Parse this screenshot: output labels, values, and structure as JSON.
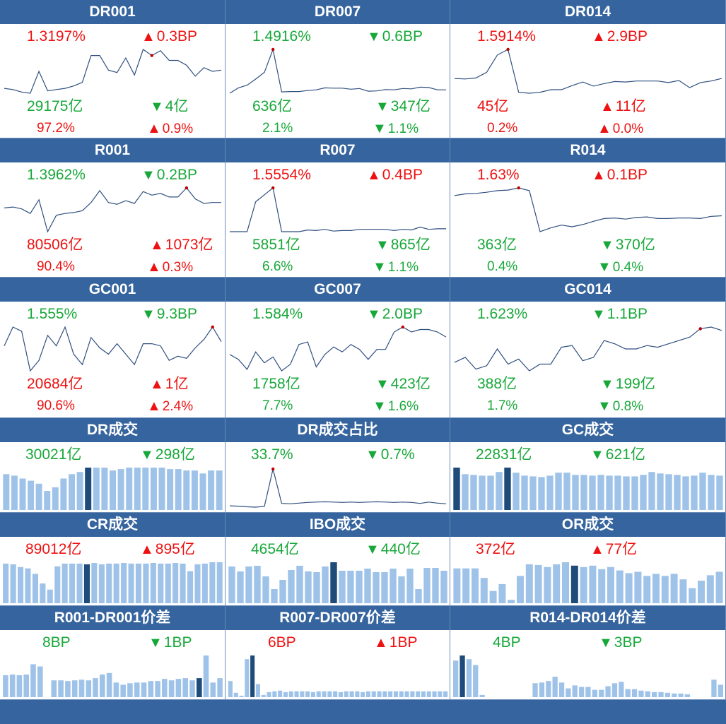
{
  "colors": {
    "header_bg": "#35649e",
    "up": "#ee1111",
    "down": "#18a83a",
    "line": "#2f4f7f",
    "bar": "#9fc3e8",
    "bar_hl": "#1f4b7a",
    "dot": "#c00000"
  },
  "rate_panels": [
    {
      "title": "DR001",
      "rate": "1.3197%",
      "rate_color": "red",
      "rate_chg_arrow": "▲",
      "rate_chg": "0.3BP",
      "rate_chg_color": "red",
      "volume": "29175亿",
      "volume_color": "green",
      "vol_chg_arrow": "▼",
      "vol_chg": "4亿",
      "vol_chg_color": "green",
      "share": "97.2%",
      "share_color": "red",
      "share_chg_arrow": "▲",
      "share_chg": "0.9%",
      "share_chg_color": "red",
      "series": [
        1.15,
        1.14,
        1.12,
        1.11,
        1.29,
        1.13,
        1.14,
        1.15,
        1.17,
        1.2,
        1.42,
        1.42,
        1.3,
        1.28,
        1.4,
        1.26,
        1.47,
        1.42,
        1.46,
        1.38,
        1.38,
        1.34,
        1.25,
        1.32,
        1.29,
        1.3
      ],
      "peak": 17
    },
    {
      "title": "DR007",
      "rate": "1.4916%",
      "rate_color": "green",
      "rate_chg_arrow": "▼",
      "rate_chg": "0.6BP",
      "rate_chg_color": "green",
      "volume": "636亿",
      "volume_color": "green",
      "vol_chg_arrow": "▼",
      "vol_chg": "347亿",
      "vol_chg_color": "green",
      "share": "2.1%",
      "share_color": "green",
      "share_chg_arrow": "▼",
      "share_chg": "1.1%",
      "share_chg_color": "green",
      "series": [
        1.56,
        1.72,
        1.8,
        1.98,
        2.18,
        2.86,
        1.6,
        1.61,
        1.61,
        1.64,
        1.66,
        1.72,
        1.71,
        1.71,
        1.68,
        1.7,
        1.62,
        1.63,
        1.67,
        1.66,
        1.7,
        1.69,
        1.74,
        1.73,
        1.66,
        1.66
      ],
      "peak": 5
    },
    {
      "title": "DR014",
      "rate": "1.5914%",
      "rate_color": "red",
      "rate_chg_arrow": "▲",
      "rate_chg": "2.9BP",
      "rate_chg_color": "red",
      "volume": "45亿",
      "volume_color": "red",
      "vol_chg_arrow": "▲",
      "vol_chg": "11亿",
      "vol_chg_color": "red",
      "share": "0.2%",
      "share_color": "red",
      "share_chg_arrow": "▲",
      "share_chg": "0.0%",
      "share_chg_color": "red",
      "series": [
        1.7,
        1.69,
        1.71,
        1.82,
        2.16,
        2.27,
        1.43,
        1.41,
        1.43,
        1.48,
        1.48,
        1.56,
        1.63,
        1.55,
        1.6,
        1.64,
        1.63,
        1.65,
        1.65,
        1.65,
        1.62,
        1.66,
        1.52,
        1.62,
        1.65,
        1.7
      ],
      "peak": 5
    },
    {
      "title": "R001",
      "rate": "1.3962%",
      "rate_color": "green",
      "rate_chg_arrow": "▼",
      "rate_chg": "0.2BP",
      "rate_chg_color": "green",
      "volume": "80506亿",
      "volume_color": "red",
      "vol_chg_arrow": "▲",
      "vol_chg": "1073亿",
      "vol_chg_color": "red",
      "share": "90.4%",
      "share_color": "red",
      "share_chg_arrow": "▲",
      "share_chg": "0.3%",
      "share_chg_color": "red",
      "series": [
        1.26,
        1.27,
        1.25,
        1.2,
        1.35,
        1.0,
        1.18,
        1.2,
        1.21,
        1.23,
        1.32,
        1.45,
        1.32,
        1.3,
        1.34,
        1.31,
        1.44,
        1.4,
        1.42,
        1.38,
        1.38,
        1.48,
        1.36,
        1.31,
        1.32,
        1.32
      ],
      "peak": 21
    },
    {
      "title": "R007",
      "rate": "1.5554%",
      "rate_color": "red",
      "rate_chg_arrow": "▲",
      "rate_chg": "0.4BP",
      "rate_chg_color": "red",
      "volume": "5851亿",
      "volume_color": "green",
      "vol_chg_arrow": "▼",
      "vol_chg": "865亿",
      "vol_chg_color": "green",
      "share": "6.6%",
      "share_color": "green",
      "share_chg_arrow": "▼",
      "share_chg": "1.1%",
      "share_chg_color": "green",
      "series": [
        1.66,
        1.66,
        1.66,
        2.18,
        2.3,
        2.42,
        1.66,
        1.66,
        1.66,
        1.69,
        1.68,
        1.7,
        1.67,
        1.68,
        1.68,
        1.7,
        1.7,
        1.7,
        1.7,
        1.68,
        1.7,
        1.69,
        1.74,
        1.7,
        1.71,
        1.71
      ],
      "peak": 5
    },
    {
      "title": "R014",
      "rate": "1.63%",
      "rate_color": "red",
      "rate_chg_arrow": "▲",
      "rate_chg": "0.1BP",
      "rate_chg_color": "red",
      "volume": "363亿",
      "volume_color": "green",
      "vol_chg_arrow": "▼",
      "vol_chg": "370亿",
      "vol_chg_color": "green",
      "share": "0.4%",
      "share_color": "green",
      "share_chg_arrow": "▼",
      "share_chg": "0.4%",
      "share_chg_color": "green",
      "series": [
        1.92,
        1.95,
        1.96,
        1.98,
        2.01,
        2.02,
        2.06,
        2.01,
        1.26,
        1.33,
        1.38,
        1.35,
        1.39,
        1.45,
        1.5,
        1.51,
        1.49,
        1.52,
        1.53,
        1.5,
        1.5,
        1.51,
        1.51,
        1.5,
        1.54,
        1.55
      ],
      "peak": 6
    },
    {
      "title": "GC001",
      "rate": "1.555%",
      "rate_color": "green",
      "rate_chg_arrow": "▼",
      "rate_chg": "9.3BP",
      "rate_chg_color": "green",
      "volume": "20684亿",
      "volume_color": "red",
      "vol_chg_arrow": "▲",
      "vol_chg": "1亿",
      "vol_chg_color": "red",
      "share": "90.6%",
      "share_color": "red",
      "share_chg_arrow": "▲",
      "share_chg": "2.4%",
      "share_chg_color": "red",
      "series": [
        1.4,
        1.85,
        1.75,
        0.8,
        1.05,
        1.65,
        1.4,
        1.85,
        1.2,
        0.95,
        1.6,
        1.35,
        1.2,
        1.45,
        1.2,
        0.95,
        1.45,
        1.45,
        1.4,
        1.05,
        1.15,
        1.1,
        1.35,
        1.55,
        1.85,
        1.5
      ],
      "peak": 24
    },
    {
      "title": "GC007",
      "rate": "1.584%",
      "rate_color": "green",
      "rate_chg_arrow": "▼",
      "rate_chg": "2.0BP",
      "rate_chg_color": "green",
      "volume": "1758亿",
      "volume_color": "green",
      "vol_chg_arrow": "▼",
      "vol_chg": "423亿",
      "vol_chg_color": "green",
      "share": "7.7%",
      "share_color": "green",
      "share_chg_arrow": "▼",
      "share_chg": "1.6%",
      "share_chg_color": "green",
      "series": [
        1.45,
        1.35,
        1.15,
        1.5,
        1.28,
        1.4,
        1.12,
        1.25,
        1.65,
        1.7,
        1.2,
        1.45,
        1.6,
        1.5,
        1.65,
        1.55,
        1.35,
        1.55,
        1.55,
        1.9,
        2.0,
        1.9,
        1.95,
        1.95,
        1.9,
        1.8
      ],
      "peak": 20
    },
    {
      "title": "GC014",
      "rate": "1.623%",
      "rate_color": "green",
      "rate_chg_arrow": "▼",
      "rate_chg": "1.1BP",
      "rate_chg_color": "green",
      "volume": "388亿",
      "volume_color": "green",
      "vol_chg_arrow": "▼",
      "vol_chg": "199亿",
      "vol_chg_color": "green",
      "share": "1.7%",
      "share_color": "green",
      "share_chg_arrow": "▼",
      "share_chg": "0.8%",
      "share_chg_color": "green",
      "series": [
        1.3,
        1.45,
        1.1,
        1.2,
        1.7,
        1.25,
        1.4,
        1.05,
        1.25,
        1.25,
        1.75,
        1.8,
        1.35,
        1.45,
        1.95,
        1.85,
        1.7,
        1.7,
        1.8,
        1.75,
        1.85,
        1.95,
        2.05,
        2.3,
        2.35,
        2.25
      ],
      "peak": 23
    }
  ],
  "volume_panels": [
    {
      "title": "DR成交",
      "kind": "bar",
      "value": "30021亿",
      "value_color": "green",
      "chg_arrow": "▼",
      "chg": "298亿",
      "chg_color": "green",
      "bars": [
        49,
        47,
        43,
        40,
        36,
        26,
        31,
        43,
        49,
        52,
        58,
        58,
        58,
        54,
        56,
        58,
        58,
        58,
        58,
        58,
        56,
        56,
        54,
        54,
        50,
        54,
        54
      ],
      "hl": [
        10
      ]
    },
    {
      "title": "DR成交占比",
      "kind": "line",
      "value": "33.7%",
      "value_color": "green",
      "chg_arrow": "▼",
      "chg": "0.7%",
      "chg_color": "green",
      "series": [
        1.5,
        1.4,
        1.2,
        1.1,
        1.3,
        12.4,
        2.2,
        2.1,
        2.3,
        2.5,
        2.6,
        2.7,
        2.6,
        2.5,
        2.6,
        2.5,
        2.6,
        2.7,
        2.6,
        2.5,
        2.6,
        2.5,
        2.2,
        2.6,
        2.3,
        2.1
      ],
      "peak": 5
    },
    {
      "title": "GC成交",
      "kind": "bar",
      "value": "22831亿",
      "value_color": "green",
      "chg_arrow": "▼",
      "chg": "621亿",
      "chg_color": "green",
      "bars": [
        58,
        49,
        48,
        47,
        47,
        52,
        58,
        51,
        47,
        46,
        45,
        47,
        51,
        51,
        48,
        48,
        47,
        48,
        47,
        47,
        46,
        46,
        48,
        52,
        50,
        49,
        48,
        46,
        47,
        51,
        48,
        47
      ],
      "hl": [
        0,
        6
      ]
    },
    {
      "title": "CR成交",
      "kind": "bar",
      "value": "89012亿",
      "value_color": "red",
      "chg_arrow": "▲",
      "chg": "895亿",
      "chg_color": "red",
      "bars": [
        58,
        57,
        53,
        51,
        43,
        29,
        20,
        54,
        58,
        58,
        58,
        57,
        59,
        57,
        58,
        58,
        59,
        58,
        58,
        58,
        59,
        58,
        58,
        59,
        58,
        47,
        57,
        58,
        60,
        60
      ],
      "hl": [
        11
      ]
    },
    {
      "title": "IBO成交",
      "kind": "bar",
      "value": "4654亿",
      "value_color": "green",
      "chg_arrow": "▼",
      "chg": "440亿",
      "chg_color": "green",
      "bars": [
        52,
        45,
        52,
        53,
        38,
        20,
        33,
        47,
        53,
        45,
        44,
        52,
        58,
        46,
        46,
        46,
        49,
        44,
        44,
        49,
        38,
        49,
        20,
        50,
        50,
        46
      ],
      "hl": [
        12
      ]
    },
    {
      "title": "OR成交",
      "kind": "bar",
      "value": "372亿",
      "value_color": "red",
      "chg_arrow": "▲",
      "chg": "77亿",
      "chg_color": "red",
      "bars": [
        51,
        51,
        51,
        37,
        18,
        28,
        5,
        40,
        57,
        56,
        53,
        57,
        60,
        55,
        53,
        55,
        50,
        53,
        48,
        44,
        46,
        40,
        43,
        40,
        43,
        35,
        22,
        33,
        41,
        46
      ],
      "hl": [
        13
      ]
    }
  ],
  "spread_panels": [
    {
      "title": "R001-DR001价差",
      "value": "8BP",
      "value_color": "green",
      "chg_arrow": "▼",
      "chg": "1BP",
      "chg_color": "green",
      "bars": [
        30,
        31,
        30,
        31,
        45,
        42,
        0,
        23,
        23,
        22,
        23,
        24,
        23,
        26,
        31,
        33,
        20,
        17,
        19,
        20,
        20,
        22,
        22,
        25,
        23,
        25,
        26,
        23,
        26,
        57,
        20,
        26
      ],
      "hl": [
        28
      ]
    },
    {
      "title": "R007-DR007价差",
      "value": "6BP",
      "value_color": "red",
      "chg_arrow": "▲",
      "chg": "1BP",
      "chg_color": "red",
      "bars": [
        22,
        6,
        2,
        52,
        57,
        18,
        3,
        7,
        8,
        9,
        7,
        8,
        8,
        8,
        8,
        7,
        8,
        8,
        8,
        8,
        7,
        8,
        8,
        8,
        7,
        8,
        8,
        8,
        8,
        8,
        8,
        8,
        8,
        8,
        8,
        8,
        8,
        8,
        8,
        8
      ],
      "hl": [
        4
      ]
    },
    {
      "title": "R014-DR014价差",
      "value": "4BP",
      "value_color": "green",
      "chg_arrow": "▼",
      "chg": "3BP",
      "chg_color": "green",
      "bars": [
        50,
        57,
        52,
        44,
        3,
        0,
        0,
        0,
        0,
        0,
        0,
        0,
        19,
        20,
        22,
        28,
        20,
        12,
        16,
        14,
        14,
        10,
        10,
        15,
        19,
        21,
        11,
        11,
        9,
        8,
        7,
        7,
        6,
        5,
        5,
        4,
        0,
        0,
        0,
        24,
        17
      ],
      "hl": [
        1
      ]
    }
  ]
}
